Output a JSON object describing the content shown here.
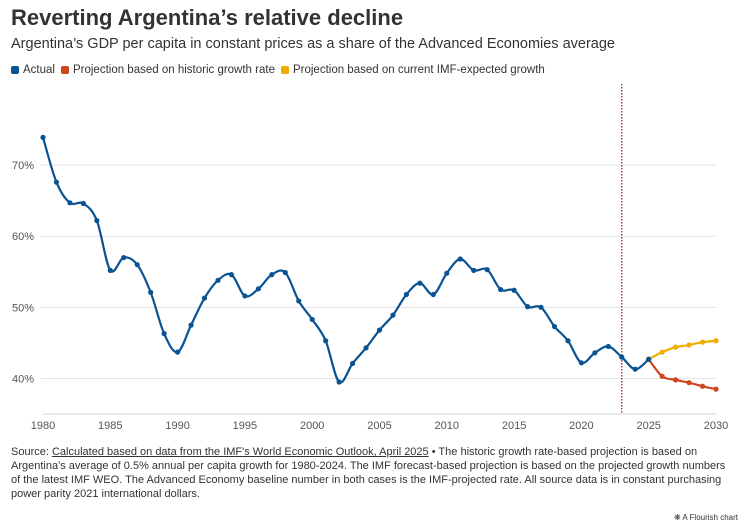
{
  "title": "Reverting Argentina’s relative decline",
  "subtitle": "Argentina’s GDP per capita in constant prices as a share of the Advanced Economies average",
  "footer": {
    "source_prefix": "Source: ",
    "source_link": "Calculated based on data from the IMF's World Economic Outlook, April 2025",
    "source_text": " • The historic growth rate-based projection is based on Argentina's average of 0.5% annual per capita growth for 1980-2024. The IMF forecast-based projection is based on the projected growth numbers of the latest IMF WEO. The Advanced Economy baseline number in both cases is the IMF-projected rate. All source data is in constant purchasing power parity 2021 international dollars."
  },
  "flourish_credit": "A Flourish chart",
  "chart_data": {
    "type": "line",
    "title": "Reverting Argentina’s relative decline",
    "xlabel": "",
    "ylabel": "",
    "xlim": [
      1980,
      2030
    ],
    "ylim": [
      35,
      80
    ],
    "x_ticks": [
      1980,
      1985,
      1990,
      1995,
      2000,
      2005,
      2010,
      2015,
      2020,
      2025,
      2030
    ],
    "y_ticks": [
      {
        "value": 40,
        "label": "40%"
      },
      {
        "value": 50,
        "label": "50%"
      },
      {
        "value": 60,
        "label": "60%"
      },
      {
        "value": 70,
        "label": "70%"
      }
    ],
    "grid": true,
    "legend_position": "top-left",
    "vertical_marker_year": 2023,
    "series": [
      {
        "name": "Actual",
        "color": "#0a5393",
        "x": [
          1980,
          1981,
          1982,
          1983,
          1984,
          1985,
          1986,
          1987,
          1988,
          1989,
          1990,
          1991,
          1992,
          1993,
          1994,
          1995,
          1996,
          1997,
          1998,
          1999,
          2000,
          2001,
          2002,
          2003,
          2004,
          2005,
          2006,
          2007,
          2008,
          2009,
          2010,
          2011,
          2012,
          2013,
          2014,
          2015,
          2016,
          2017,
          2018,
          2019,
          2020,
          2021,
          2022,
          2023,
          2024,
          2025
        ],
        "values": [
          73.9,
          67.6,
          64.7,
          64.6,
          62.2,
          55.2,
          57.0,
          56.0,
          52.1,
          46.3,
          43.7,
          47.5,
          51.3,
          53.8,
          54.6,
          51.6,
          52.6,
          54.6,
          54.9,
          50.9,
          48.3,
          45.3,
          39.5,
          42.1,
          44.3,
          46.8,
          48.9,
          51.8,
          53.4,
          51.8,
          54.8,
          56.8,
          55.2,
          55.3,
          52.5,
          52.4,
          50.1,
          50.0,
          47.3,
          45.3,
          42.2,
          43.6,
          44.5,
          43.0,
          41.3,
          42.7
        ]
      },
      {
        "name": "Projection based on historic growth rate",
        "color": "#cf4520",
        "x": [
          2025,
          2026,
          2027,
          2028,
          2029,
          2030
        ],
        "values": [
          42.7,
          40.3,
          39.8,
          39.4,
          38.9,
          38.5
        ]
      },
      {
        "name": "Projection based on current IMF-expected growth",
        "color": "#f0ac00",
        "x": [
          2025,
          2026,
          2027,
          2028,
          2029,
          2030
        ],
        "values": [
          42.7,
          43.7,
          44.4,
          44.7,
          45.1,
          45.3
        ]
      }
    ]
  }
}
